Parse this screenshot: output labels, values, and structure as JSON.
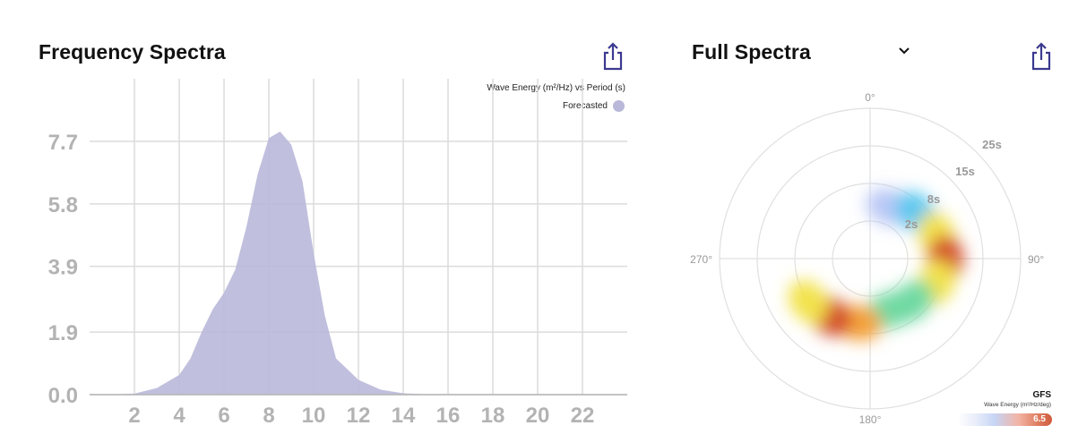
{
  "frequency_panel": {
    "title": "Frequency Spectra",
    "share_icon": "share-icon",
    "legend_title": "Wave Energy (m²/Hz) vs Period (s)",
    "legend_series": "Forecasted",
    "series_color": "#b9b8d9"
  },
  "full_panel": {
    "title": "Full Spectra",
    "dropdown_icon": "chevron-down-icon",
    "share_icon": "share-icon",
    "direction_labels": [
      "0°",
      "90°",
      "180°",
      "270°"
    ],
    "ring_labels": [
      "2s",
      "8s",
      "15s",
      "25s"
    ],
    "colorbar": {
      "label": "GFS",
      "sublabel": "Wave Energy (m²/Hz/deg)",
      "max": "6.5"
    }
  },
  "chart_data": [
    {
      "type": "area",
      "title": "",
      "xlabel": "",
      "ylabel": "",
      "xlim": [
        0,
        24
      ],
      "ylim": [
        0,
        7.7
      ],
      "xticks": [
        2,
        4,
        6,
        8,
        10,
        12,
        14,
        16,
        18,
        20,
        22
      ],
      "yticks": [
        "0.0",
        "1.9",
        "3.9",
        "5.8",
        "7.7"
      ],
      "grid": true,
      "legend_placement": "top-right",
      "series": [
        {
          "name": "Forecasted",
          "color": "#b9b8d9",
          "x": [
            1,
            2,
            3,
            4,
            4.5,
            5,
            5.5,
            6,
            6.5,
            7,
            7.5,
            8,
            8.5,
            9,
            9.5,
            10,
            10.5,
            11,
            12,
            13,
            14,
            15,
            16,
            24
          ],
          "y": [
            0,
            0.03,
            0.2,
            0.6,
            1.1,
            1.9,
            2.6,
            3.1,
            3.8,
            5.1,
            6.7,
            7.8,
            8.0,
            7.6,
            6.5,
            4.3,
            2.4,
            1.1,
            0.45,
            0.15,
            0.04,
            0.01,
            0,
            0
          ]
        }
      ]
    },
    {
      "type": "heatmap",
      "title": "",
      "projection": "polar",
      "angular_axis": "direction (deg)",
      "radial_axis": "period (s)",
      "direction_ticks": [
        0,
        90,
        180,
        270
      ],
      "radial_ticks": [
        2,
        8,
        15,
        25
      ],
      "color_max": 6.5,
      "points": [
        {
          "dir": 20,
          "period": 11,
          "energy": 0.6
        },
        {
          "dir": 45,
          "period": 13,
          "energy": 1.8
        },
        {
          "dir": 70,
          "period": 14,
          "energy": 3.8
        },
        {
          "dir": 90,
          "period": 15,
          "energy": 5.6
        },
        {
          "dir": 110,
          "period": 14,
          "energy": 3.6
        },
        {
          "dir": 135,
          "period": 12,
          "energy": 2.0
        },
        {
          "dir": 160,
          "period": 11,
          "energy": 2.6
        },
        {
          "dir": 190,
          "period": 13,
          "energy": 4.4
        },
        {
          "dir": 215,
          "period": 14,
          "energy": 6.5
        },
        {
          "dir": 235,
          "period": 15,
          "energy": 3.2
        }
      ]
    }
  ]
}
